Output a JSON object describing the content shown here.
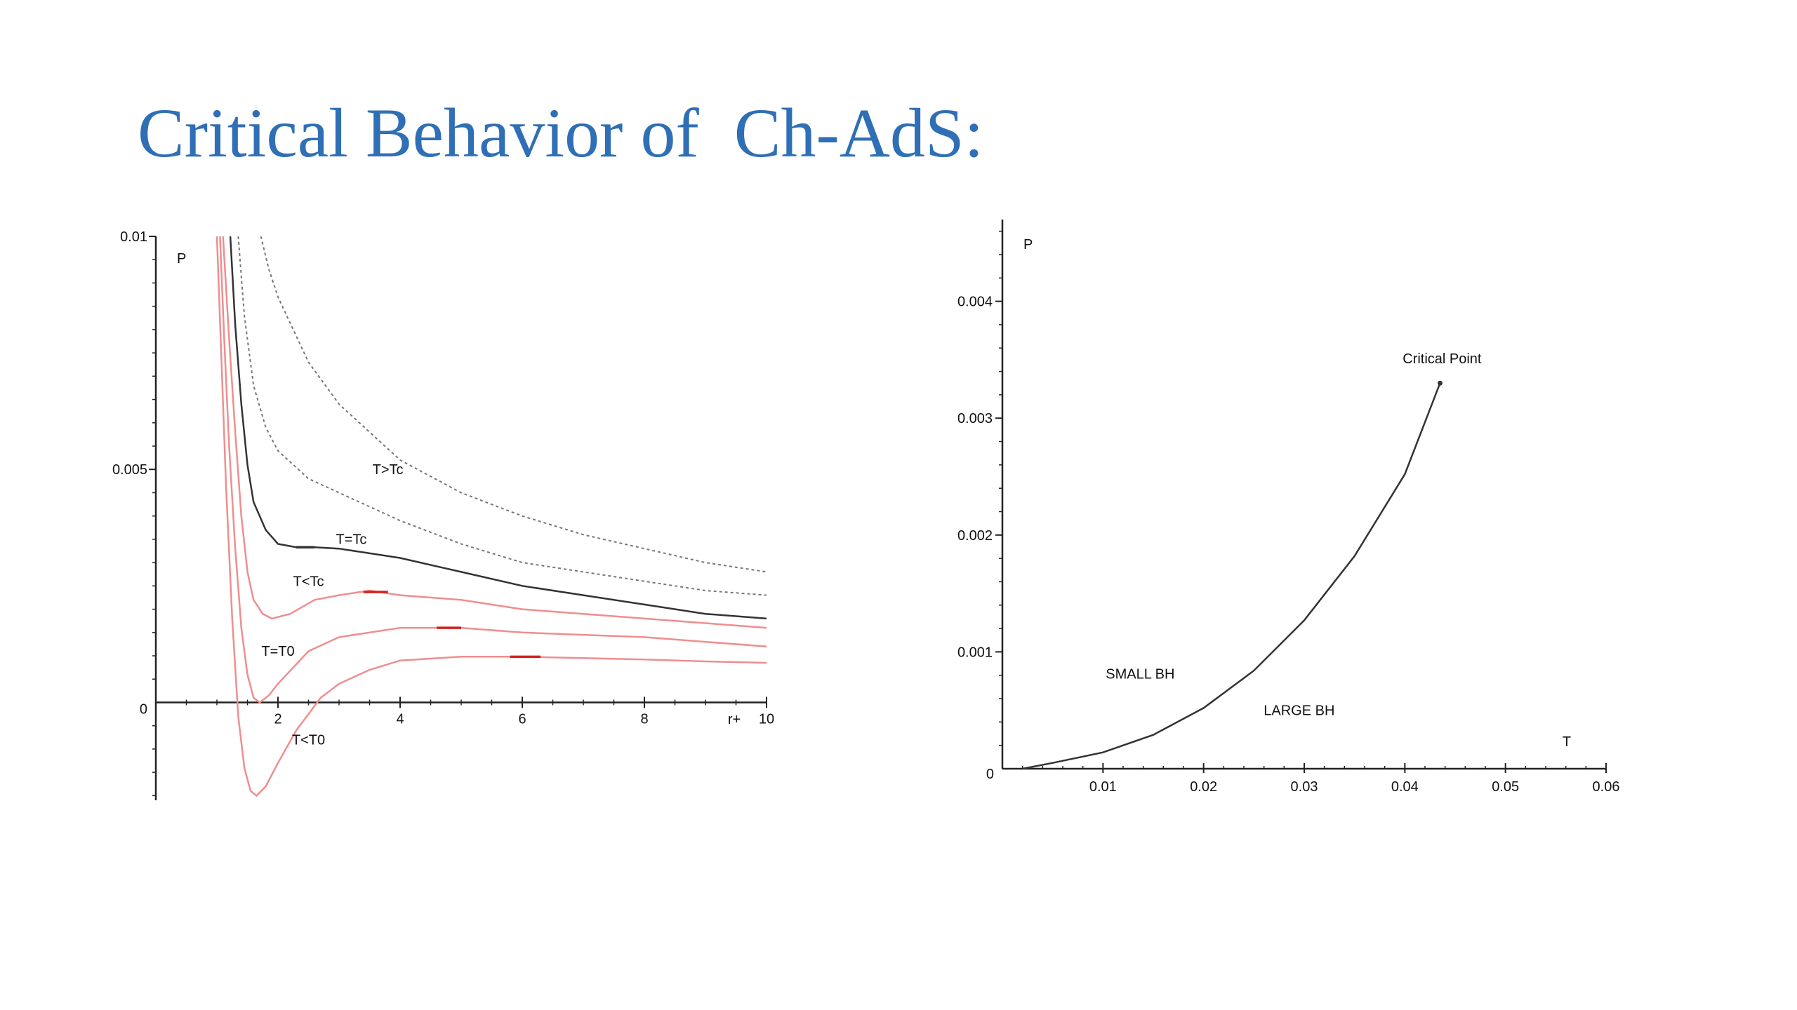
{
  "slide": {
    "title": "Critical Behavior of  Ch-AdS:"
  },
  "colors": {
    "title": "#2f6fb5",
    "axis": "#222222",
    "critical_curve": "#333333",
    "dashed_curve": "#777777",
    "red_curve": "#ef8e8e",
    "red_marker": "#d32020"
  },
  "chart_data": [
    {
      "type": "line",
      "xlabel": "r+",
      "ylabel": "P",
      "xlim": [
        0,
        10
      ],
      "ylim": [
        -0.0021,
        0.01
      ],
      "x_ticks": [
        2,
        4,
        6,
        8,
        10
      ],
      "x_tick_labels": [
        "2",
        "4",
        "6",
        "8",
        "10"
      ],
      "y_ticks": [
        0.005,
        0.01
      ],
      "y_tick_labels": [
        "0.005",
        "0.01"
      ],
      "origin_label": "0",
      "series": [
        {
          "name": "T>Tc",
          "style": "dashed",
          "color": "#777777",
          "points": [
            [
              1.72,
              0.01
            ],
            [
              1.85,
              0.0093
            ],
            [
              2.0,
              0.0087
            ],
            [
              2.5,
              0.0073
            ],
            [
              3.0,
              0.0064
            ],
            [
              4.0,
              0.0052
            ],
            [
              5.0,
              0.0045
            ],
            [
              6.0,
              0.004
            ],
            [
              7.0,
              0.0036
            ],
            [
              8.0,
              0.0033
            ],
            [
              9.0,
              0.003
            ],
            [
              10.0,
              0.0028
            ]
          ]
        },
        {
          "name": "",
          "style": "dashed",
          "color": "#777777",
          "points": [
            [
              1.35,
              0.01
            ],
            [
              1.45,
              0.0083
            ],
            [
              1.6,
              0.0068
            ],
            [
              1.8,
              0.0059
            ],
            [
              2.0,
              0.0054
            ],
            [
              2.5,
              0.0048
            ],
            [
              3.0,
              0.0045
            ],
            [
              4.0,
              0.0039
            ],
            [
              5.0,
              0.0034
            ],
            [
              6.0,
              0.003
            ],
            [
              7.0,
              0.0028
            ],
            [
              8.0,
              0.0026
            ],
            [
              9.0,
              0.0024
            ],
            [
              10.0,
              0.0023
            ]
          ]
        },
        {
          "name": "T=Tc",
          "style": "solid",
          "color": "#333333",
          "points": [
            [
              1.22,
              0.01
            ],
            [
              1.3,
              0.0081
            ],
            [
              1.4,
              0.0064
            ],
            [
              1.5,
              0.0051
            ],
            [
              1.6,
              0.0043
            ],
            [
              1.8,
              0.0037
            ],
            [
              2.0,
              0.0034
            ],
            [
              2.3,
              0.00333
            ],
            [
              2.6,
              0.00333
            ],
            [
              3.0,
              0.0033
            ],
            [
              4.0,
              0.0031
            ],
            [
              5.0,
              0.0028
            ],
            [
              6.0,
              0.0025
            ],
            [
              7.0,
              0.0023
            ],
            [
              8.0,
              0.0021
            ],
            [
              9.0,
              0.0019
            ],
            [
              10.0,
              0.0018
            ]
          ]
        },
        {
          "name": "T<Tc",
          "style": "solid",
          "color": "#ef8e8e",
          "points": [
            [
              1.1,
              0.01
            ],
            [
              1.2,
              0.0078
            ],
            [
              1.3,
              0.0058
            ],
            [
              1.4,
              0.004
            ],
            [
              1.5,
              0.0028
            ],
            [
              1.6,
              0.0022
            ],
            [
              1.75,
              0.0019
            ],
            [
              1.9,
              0.0018
            ],
            [
              2.2,
              0.0019
            ],
            [
              2.6,
              0.0022
            ],
            [
              3.0,
              0.0023
            ],
            [
              3.5,
              0.0024
            ],
            [
              4.0,
              0.0023
            ],
            [
              5.0,
              0.0022
            ],
            [
              6.0,
              0.002
            ],
            [
              7.0,
              0.0019
            ],
            [
              8.0,
              0.0018
            ],
            [
              9.0,
              0.0017
            ],
            [
              10.0,
              0.0016
            ]
          ]
        },
        {
          "name": "T=T0",
          "style": "solid",
          "color": "#ef8e8e",
          "points": [
            [
              1.05,
              0.01
            ],
            [
              1.12,
              0.0078
            ],
            [
              1.2,
              0.0055
            ],
            [
              1.3,
              0.0033
            ],
            [
              1.4,
              0.0016
            ],
            [
              1.5,
              0.0006
            ],
            [
              1.6,
              0.0001
            ],
            [
              1.7,
              0.0
            ],
            [
              1.85,
              0.00015
            ],
            [
              2.0,
              0.0004
            ],
            [
              2.5,
              0.0011
            ],
            [
              3.0,
              0.0014
            ],
            [
              4.0,
              0.0016
            ],
            [
              5.0,
              0.0016
            ],
            [
              6.0,
              0.0015
            ],
            [
              7.0,
              0.00145
            ],
            [
              8.0,
              0.0014
            ],
            [
              9.0,
              0.0013
            ],
            [
              10.0,
              0.0012
            ]
          ]
        },
        {
          "name": "T<T0",
          "style": "solid",
          "color": "#ef8e8e",
          "points": [
            [
              1.0,
              0.01
            ],
            [
              1.07,
              0.0075
            ],
            [
              1.15,
              0.0046
            ],
            [
              1.25,
              0.0018
            ],
            [
              1.35,
              -0.0003
            ],
            [
              1.45,
              -0.0014
            ],
            [
              1.55,
              -0.0019
            ],
            [
              1.65,
              -0.002
            ],
            [
              1.8,
              -0.0018
            ],
            [
              2.0,
              -0.0013
            ],
            [
              2.3,
              -0.0006
            ],
            [
              2.7,
              0.0001
            ],
            [
              3.0,
              0.0004
            ],
            [
              3.5,
              0.0007
            ],
            [
              4.0,
              0.0009
            ],
            [
              5.0,
              0.00098
            ],
            [
              6.0,
              0.00098
            ],
            [
              7.0,
              0.00095
            ],
            [
              8.0,
              0.00092
            ],
            [
              9.0,
              0.00088
            ],
            [
              10.0,
              0.00085
            ]
          ]
        }
      ],
      "markers": [
        {
          "x": [
            2.3,
            2.6
          ],
          "y": 0.00333,
          "color": "#333333"
        },
        {
          "x": [
            3.4,
            3.8
          ],
          "y": 0.00237,
          "color": "#d32020"
        },
        {
          "x": [
            4.6,
            5.0
          ],
          "y": 0.0016,
          "color": "#d32020"
        },
        {
          "x": [
            5.8,
            6.3
          ],
          "y": 0.00098,
          "color": "#d32020"
        }
      ],
      "annotations": [
        {
          "text": "T>Tc",
          "x": 3.8,
          "y": 0.0049
        },
        {
          "text": "T=Tc",
          "x": 3.2,
          "y": 0.0034
        },
        {
          "text": "T<Tc",
          "x": 2.5,
          "y": 0.0025
        },
        {
          "text": "T=T0",
          "x": 2.0,
          "y": 0.001
        },
        {
          "text": "T<T0",
          "x": 2.5,
          "y": -0.0009
        }
      ]
    },
    {
      "type": "line",
      "xlabel": "T",
      "ylabel": "P",
      "xlim": [
        0,
        0.06
      ],
      "ylim": [
        0,
        0.0047
      ],
      "x_ticks": [
        0.01,
        0.02,
        0.03,
        0.04,
        0.05,
        0.06
      ],
      "x_tick_labels": [
        "0.01",
        "0.02",
        "0.03",
        "0.04",
        "0.05",
        "0.06"
      ],
      "y_ticks": [
        0.001,
        0.002,
        0.003,
        0.004
      ],
      "y_tick_labels": [
        "0.001",
        "0.002",
        "0.003",
        "0.004"
      ],
      "origin_label": "0",
      "series": [
        {
          "name": "",
          "style": "solid",
          "color": "#333333",
          "points": [
            [
              0.002,
              0.0
            ],
            [
              0.005,
              5e-05
            ],
            [
              0.01,
              0.00014
            ],
            [
              0.015,
              0.00029
            ],
            [
              0.02,
              0.00052
            ],
            [
              0.025,
              0.00084
            ],
            [
              0.03,
              0.00127
            ],
            [
              0.035,
              0.00182
            ],
            [
              0.04,
              0.00252
            ],
            [
              0.0435,
              0.0033
            ]
          ]
        }
      ],
      "critical_point": {
        "label": "Critical Point",
        "T": 0.0435,
        "P": 0.0033
      },
      "annotations": [
        {
          "text": "SMALL BH",
          "x": 0.0137,
          "y": 0.00077
        },
        {
          "text": "LARGE BH",
          "x": 0.0295,
          "y": 0.00046
        },
        {
          "text": "Critical Point",
          "x": 0.0437,
          "y": 0.00347
        }
      ]
    }
  ]
}
